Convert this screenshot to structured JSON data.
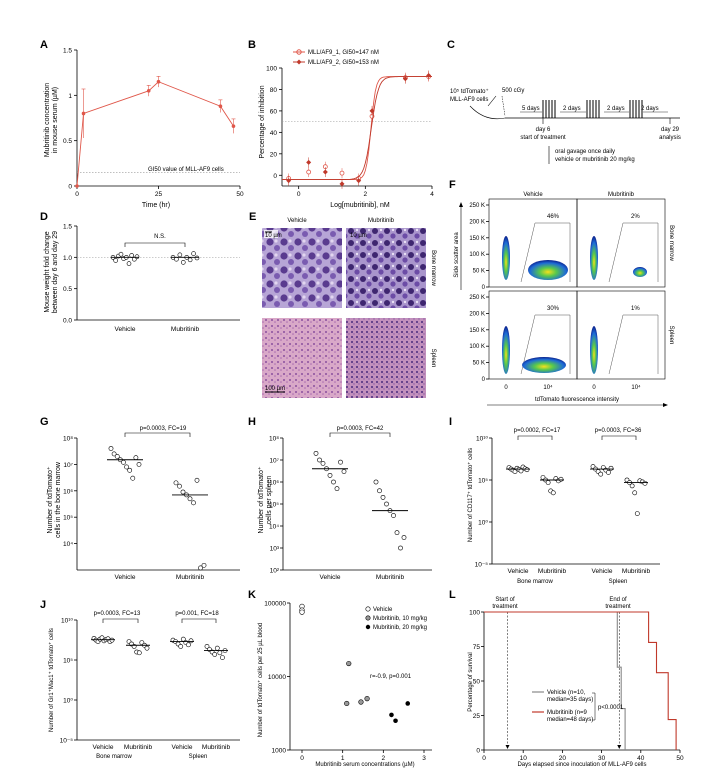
{
  "panels": {
    "A": {
      "letter": "A",
      "ylabel": "Mubritinib concentration in mouse serum (µM)",
      "ylabel_lines": [
        "Mubritinib concentration",
        "in mouse serum (µM)"
      ],
      "xlabel": "Time (hr)",
      "yticks": [
        "0",
        "0.5",
        "1",
        "1.5"
      ],
      "xticks": [
        "0",
        "25",
        "50"
      ],
      "annotation": "GI50 value of MLL-AF9 cells"
    },
    "B": {
      "letter": "B",
      "legend": [
        "MLL/AF9_1, GI50=147 nM",
        "MLL/AF9_2, GI50=153 nM"
      ],
      "ylabel": "Percentage of inhibition",
      "xlabel": "Log[mubritinib], nM",
      "yticks": [
        "0",
        "20",
        "40",
        "60",
        "80",
        "100"
      ],
      "xticks": [
        "0",
        "2",
        "4"
      ]
    },
    "C": {
      "letter": "C",
      "cells_label": [
        "10⁵ tdTomato⁺",
        "MLL-AF9 cells"
      ],
      "irradiation": "500 cGy",
      "periods": [
        "5 days",
        "2 days",
        "2 days",
        "2 days"
      ],
      "day6": [
        "day 6",
        "start of treatment"
      ],
      "day29": [
        "day 29",
        "analysis"
      ],
      "gavage": [
        "oral gavage once daily",
        "vehicle or mubritinib 20 mg/kg"
      ]
    },
    "D": {
      "letter": "D",
      "ylabel_lines": [
        "Mouse weight fold change",
        "between day 6 and day 29"
      ],
      "yticks": [
        "0.0",
        "0.5",
        "1.0",
        "1.5"
      ],
      "xticks": [
        "Vehicle",
        "Mubritinib"
      ],
      "sig": "N.S."
    },
    "E": {
      "letter": "E",
      "cols": [
        "Vehicle",
        "Mubritinib"
      ],
      "rows": [
        "Bone marrow",
        "Spleen"
      ],
      "scale_top": "10 µm",
      "scale_bottom": "100 µm"
    },
    "F": {
      "letter": "F",
      "cols": [
        "Vehicle",
        "Mubritinib"
      ],
      "rows": [
        "Bone marrow",
        "Spleen"
      ],
      "ylabel": "Side scatter area",
      "xlabel": "tdTomato fluorescence intensity",
      "yticks": [
        "0",
        "50 K",
        "100 K",
        "150 K",
        "200 K",
        "250 K"
      ],
      "xticks": [
        "0",
        "10⁴"
      ],
      "percents": [
        "46%",
        "2%",
        "30%",
        "1%"
      ]
    },
    "G": {
      "letter": "G",
      "ylabel_lines": [
        "Number of tdTomato⁺",
        "cells in the bone marrow"
      ],
      "yticks": [
        "10⁸",
        "10⁷",
        "10⁶",
        "10⁵",
        "10⁴"
      ],
      "xticks": [
        "Vehicle",
        "Mubritinib"
      ],
      "sig": "p=0.0003, FC=19"
    },
    "H": {
      "letter": "H",
      "ylabel_lines": [
        "Number of tdTomato⁺",
        "cells per spleen"
      ],
      "yticks": [
        "10⁸",
        "10⁷",
        "10⁶",
        "10⁵",
        "10⁴",
        "10³",
        "10²"
      ],
      "xticks": [
        "Vehicle",
        "Mubritinib"
      ],
      "sig": "p=0.0003, FC=42"
    },
    "I": {
      "letter": "I",
      "ylabel": "Number of CD117⁺ tdTomato⁺ cells",
      "yticks": [
        "10¹⁰",
        "10⁵",
        "10⁰",
        "10⁻⁵"
      ],
      "xticks": [
        "Vehicle",
        "Mubritinib",
        "Vehicle",
        "Mubritinib"
      ],
      "groups": [
        "Bone marrow",
        "Spleen"
      ],
      "sig": [
        "p=0.0002, FC=17",
        "p=0.0003, FC=36"
      ]
    },
    "J": {
      "letter": "J",
      "ylabel": "Number of Gr1⁺Mac1⁺ tdTomato⁺ cells",
      "yticks": [
        "10¹⁰",
        "10⁵",
        "10⁰",
        "10⁻⁵"
      ],
      "xticks": [
        "Vehicle",
        "Mubritinib",
        "Vehicle",
        "Mubritinib"
      ],
      "groups": [
        "Bone marrow",
        "Spleen"
      ],
      "sig": [
        "p=0.0003, FC=13",
        "p=0.001, FC=18"
      ]
    },
    "K": {
      "letter": "K",
      "ylabel": "Number of tdTomato⁺ cells per 25 µL blood",
      "xlabel": "Mubritinib serum concentrations (µM)",
      "yticks": [
        "100000",
        "10000",
        "1000"
      ],
      "xticks": [
        "0",
        "1",
        "2",
        "3"
      ],
      "legend": [
        "Vehicle",
        "Mubritinib, 10 mg/kg",
        "Mubritinib, 20 mg/kg"
      ],
      "stat": "r=-0.9, p=0.001"
    },
    "L": {
      "letter": "L",
      "ylabel": "Percentage of survival",
      "xlabel": "Days elapsed since inoculation of MLL-AF9 cells",
      "yticks": [
        "0",
        "25",
        "50",
        "75",
        "100"
      ],
      "xticks": [
        "0",
        "10",
        "20",
        "30",
        "40",
        "50"
      ],
      "start": [
        "Start of",
        "treatment"
      ],
      "end": [
        "End of",
        "treatment"
      ],
      "legend": [
        "Vehicle (n=10,",
        "median=35 days)",
        "Mubritinib (n=9",
        "median=48 days)"
      ],
      "pval": "p<0.0001"
    }
  },
  "colors": {
    "red": "#e0574a",
    "darkred": "#c0392b",
    "gray": "#888888"
  },
  "chart_data": [
    {
      "panel": "A",
      "type": "line",
      "x": [
        0,
        2,
        22,
        25,
        44,
        48
      ],
      "y": [
        0,
        0.8,
        1.05,
        1.15,
        0.88,
        0.66
      ],
      "ylim": [
        0,
        1.5
      ],
      "xlim": [
        0,
        50
      ]
    },
    {
      "panel": "B",
      "type": "scatter",
      "series": [
        {
          "name": "MLL/AF9_1, GI50=147 nM",
          "x": [
            -0.3,
            0.3,
            0.8,
            1.3,
            1.8,
            2.2,
            3.2,
            3.9
          ],
          "y": [
            -3,
            3,
            8,
            2,
            -3,
            55,
            91,
            92
          ]
        },
        {
          "name": "MLL/AF9_2, GI50=153 nM",
          "x": [
            -0.3,
            0.3,
            0.8,
            1.3,
            1.8,
            2.2,
            3.2,
            3.9
          ],
          "y": [
            -5,
            12,
            3,
            -8,
            -5,
            60,
            90,
            93
          ]
        }
      ],
      "ylim": [
        -10,
        100
      ],
      "xlim": [
        -0.5,
        4
      ]
    },
    {
      "panel": "D",
      "type": "scatter",
      "categories": [
        "Vehicle",
        "Mubritinib"
      ],
      "values": [
        [
          1.0,
          0.95,
          1.02,
          1.05,
          0.98,
          1.0,
          0.9,
          1.03,
          0.97,
          1.01
        ],
        [
          1.0,
          0.97,
          1.04,
          0.92,
          1.0,
          0.96,
          1.06,
          0.99
        ]
      ],
      "ylim": [
        0,
        1.5
      ]
    },
    {
      "panel": "G",
      "type": "scatter",
      "categories": [
        "Vehicle",
        "Mubritinib"
      ],
      "values": [
        [
          40000000,
          25000000,
          20000000,
          15000000,
          12000000,
          8000000,
          6000000,
          3000000,
          18000000,
          10000000
        ],
        [
          2000000,
          1500000,
          900000,
          700000,
          500000,
          350000,
          2500000,
          1200,
          1500
        ]
      ],
      "ylim": [
        1000,
        100000000
      ]
    },
    {
      "panel": "H",
      "type": "scatter",
      "categories": [
        "Vehicle",
        "Mubritinib"
      ],
      "values": [
        [
          20000000,
          10000000,
          7000000,
          4000000,
          2000000,
          1000000,
          500000,
          8000000,
          3000000
        ],
        [
          1000000,
          400000,
          200000,
          100000,
          50000,
          30000,
          5000,
          1000,
          3000
        ]
      ],
      "ylim": [
        100,
        100000000
      ]
    },
    {
      "panel": "I",
      "type": "scatter",
      "categories": [
        "Vehicle BM",
        "Mubritinib BM",
        "Vehicle Spleen",
        "Mubritinib Spleen"
      ],
      "values": [
        [
          3000000.0,
          2000000.0,
          1500000.0,
          1000000.0,
          2500000.0,
          1800000.0,
          1200000.0,
          3500000.0,
          2200000.0,
          1700000.0
        ],
        [
          200000.0,
          100000.0,
          50000.0,
          5000,
          3000,
          150000.0,
          80000.0,
          120000.0
        ],
        [
          4000000.0,
          2000000.0,
          1000000.0,
          500000.0,
          3000000.0,
          1500000.0,
          800000.0,
          2500000.0
        ],
        [
          100000.0,
          50000.0,
          20000.0,
          3000,
          10,
          80000.0,
          60000.0,
          40000.0
        ]
      ],
      "ylim": [
        1e-05,
        10000000000.0
      ]
    },
    {
      "panel": "J",
      "type": "scatter",
      "categories": [
        "Vehicle BM",
        "Mubritinib BM",
        "Vehicle Spleen",
        "Mubritinib Spleen"
      ],
      "values": [
        [
          50000000.0,
          30000000.0,
          20000000.0,
          40000000.0,
          60000000.0,
          25000000.0,
          35000000.0,
          45000000.0,
          20000000.0,
          30000000.0
        ],
        [
          20000000.0,
          10000000.0,
          5000000.0,
          1000000.0,
          800000.0,
          15000000.0,
          7000000.0,
          3000000.0
        ],
        [
          30000000.0,
          20000000.0,
          10000000.0,
          5000000.0,
          40000000.0,
          15000000.0,
          8000000.0,
          25000000.0
        ],
        [
          5000000.0,
          2000000.0,
          1000000.0,
          500000.0,
          3000000.0,
          800000.0,
          200000.0,
          1500000.0
        ]
      ],
      "ylim": [
        1e-05,
        10000000000.0
      ]
    },
    {
      "panel": "K",
      "type": "scatter",
      "series": [
        {
          "name": "Vehicle",
          "x": [
            0,
            0,
            0
          ],
          "y": [
            90000,
            80000,
            75000
          ]
        },
        {
          "name": "Mubritinib, 10 mg/kg",
          "x": [
            1.1,
            1.15,
            1.45,
            1.6
          ],
          "y": [
            4300,
            15000,
            4500,
            5000
          ]
        },
        {
          "name": "Mubritinib, 20 mg/kg",
          "x": [
            2.2,
            2.3,
            2.6
          ],
          "y": [
            3000,
            2500,
            4300
          ]
        }
      ],
      "ylim": [
        1000,
        100000
      ],
      "xlim": [
        0,
        3
      ]
    },
    {
      "panel": "L",
      "type": "line",
      "series": [
        {
          "name": "Vehicle",
          "x": [
            0,
            34,
            34,
            35,
            35,
            36,
            36
          ],
          "y": [
            100,
            100,
            60,
            60,
            30,
            30,
            0
          ]
        },
        {
          "name": "Mubritinib",
          "x": [
            0,
            42,
            42,
            44,
            44,
            47,
            47,
            49,
            49
          ],
          "y": [
            100,
            100,
            78,
            78,
            56,
            56,
            22,
            22,
            0
          ]
        }
      ],
      "ylim": [
        0,
        100
      ],
      "xlim": [
        0,
        50
      ]
    }
  ]
}
